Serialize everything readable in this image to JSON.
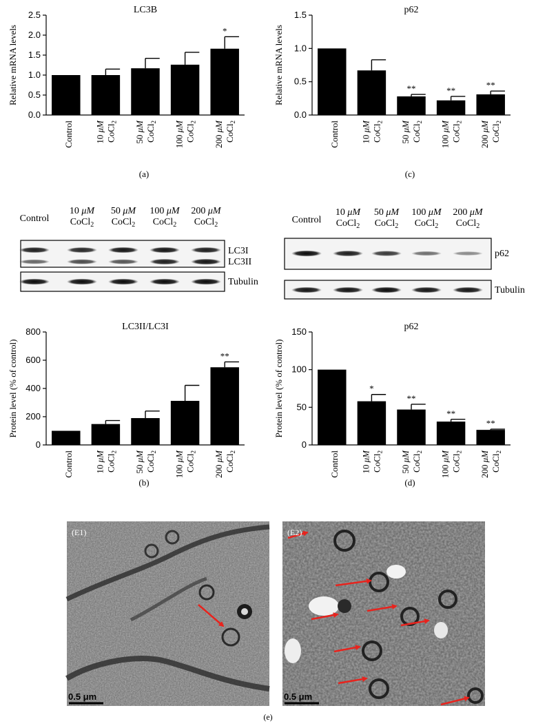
{
  "charts": [
    {
      "id": "a",
      "panel_label": "(a)",
      "title": "LC3B",
      "ylabel": "Relative mRNA levels",
      "ylim": [
        0,
        2.5
      ],
      "yticks": [
        0.0,
        0.5,
        1.0,
        1.5,
        2.0,
        2.5
      ],
      "tick_decimals": 1,
      "categories": [
        "Control",
        "10 μM CoCl2",
        "50 μM CoCl2",
        "100 μM CoCl2",
        "200 μM CoCl2"
      ],
      "values": [
        1.0,
        1.0,
        1.17,
        1.26,
        1.66
      ],
      "errors": [
        0,
        0.15,
        0.25,
        0.31,
        0.3
      ],
      "significance": [
        "",
        "",
        "",
        "",
        "*"
      ]
    },
    {
      "id": "c",
      "panel_label": "(c)",
      "title": "p62",
      "ylabel": "Relative mRNA levels",
      "ylim": [
        0,
        1.5
      ],
      "yticks": [
        0.0,
        0.5,
        1.0,
        1.5
      ],
      "tick_decimals": 1,
      "categories": [
        "Control",
        "10 μM CoCl2",
        "50 μM CoCl2",
        "100 μM CoCl2",
        "200 μM CoCl2"
      ],
      "values": [
        1.0,
        0.67,
        0.28,
        0.22,
        0.31
      ],
      "errors": [
        0,
        0.16,
        0.03,
        0.06,
        0.05
      ],
      "significance": [
        "",
        "",
        "**",
        "**",
        "**"
      ]
    },
    {
      "id": "b",
      "panel_label": "(b)",
      "title": "LC3II/LC3I",
      "ylabel": "Protein level (% of control)",
      "ylim": [
        0,
        800
      ],
      "yticks": [
        0,
        200,
        400,
        600,
        800
      ],
      "tick_decimals": 0,
      "categories": [
        "Control",
        "10 μM CoCl2",
        "50 μM CoCl2",
        "100 μM CoCl2",
        "200 μM CoCl2"
      ],
      "values": [
        100,
        148,
        190,
        312,
        550
      ],
      "errors": [
        0,
        25,
        50,
        110,
        38
      ],
      "significance": [
        "",
        "",
        "",
        "",
        "**"
      ]
    },
    {
      "id": "d",
      "panel_label": "(d)",
      "title": "p62",
      "ylabel": "Protein level (% of control)",
      "ylim": [
        0,
        150
      ],
      "yticks": [
        0,
        50,
        100,
        150
      ],
      "tick_decimals": 0,
      "categories": [
        "Control",
        "10 μM CoCl2",
        "50 μM CoCl2",
        "100 μM CoCl2",
        "200 μM CoCl2"
      ],
      "values": [
        100,
        58,
        47,
        31,
        20
      ],
      "errors": [
        0,
        9,
        7,
        3,
        1
      ],
      "significance": [
        "",
        "*",
        "**",
        "**",
        "**"
      ]
    }
  ],
  "blots": [
    {
      "id": "blot-lc3",
      "lanes": [
        "Control",
        "10 μM CoCl2",
        "50 μM CoCl2",
        "100 μM CoCl2",
        "200 μM CoCl2"
      ],
      "rows": [
        {
          "labels": [
            "LC3I",
            "LC3II"
          ],
          "bands": [
            [
              0.85,
              0.8,
              0.9,
              0.9,
              0.85
            ],
            [
              0.45,
              0.6,
              0.55,
              0.85,
              0.9
            ]
          ]
        },
        {
          "labels": [
            "Tubulin"
          ],
          "bands": [
            [
              0.95,
              0.95,
              0.95,
              0.95,
              0.95
            ]
          ]
        }
      ]
    },
    {
      "id": "blot-p62",
      "lanes": [
        "Control",
        "10 μM CoCl2",
        "50 μM CoCl2",
        "100 μM CoCl2",
        "200 μM CoCl2"
      ],
      "rows": [
        {
          "labels": [
            "p62"
          ],
          "bands": [
            [
              0.95,
              0.85,
              0.7,
              0.4,
              0.25
            ]
          ]
        },
        {
          "labels": [
            "Tubulin"
          ],
          "bands": [
            [
              0.9,
              0.9,
              0.95,
              0.9,
              0.9
            ]
          ]
        }
      ]
    }
  ],
  "micrographs": {
    "panel_label": "(e)",
    "items": [
      {
        "id": "E1",
        "label": "(E1)",
        "scale": "0.5 μm"
      },
      {
        "id": "E2",
        "label": "(E2)",
        "scale": "0.5 μm"
      }
    ],
    "arrow_color": "#e8231d"
  }
}
